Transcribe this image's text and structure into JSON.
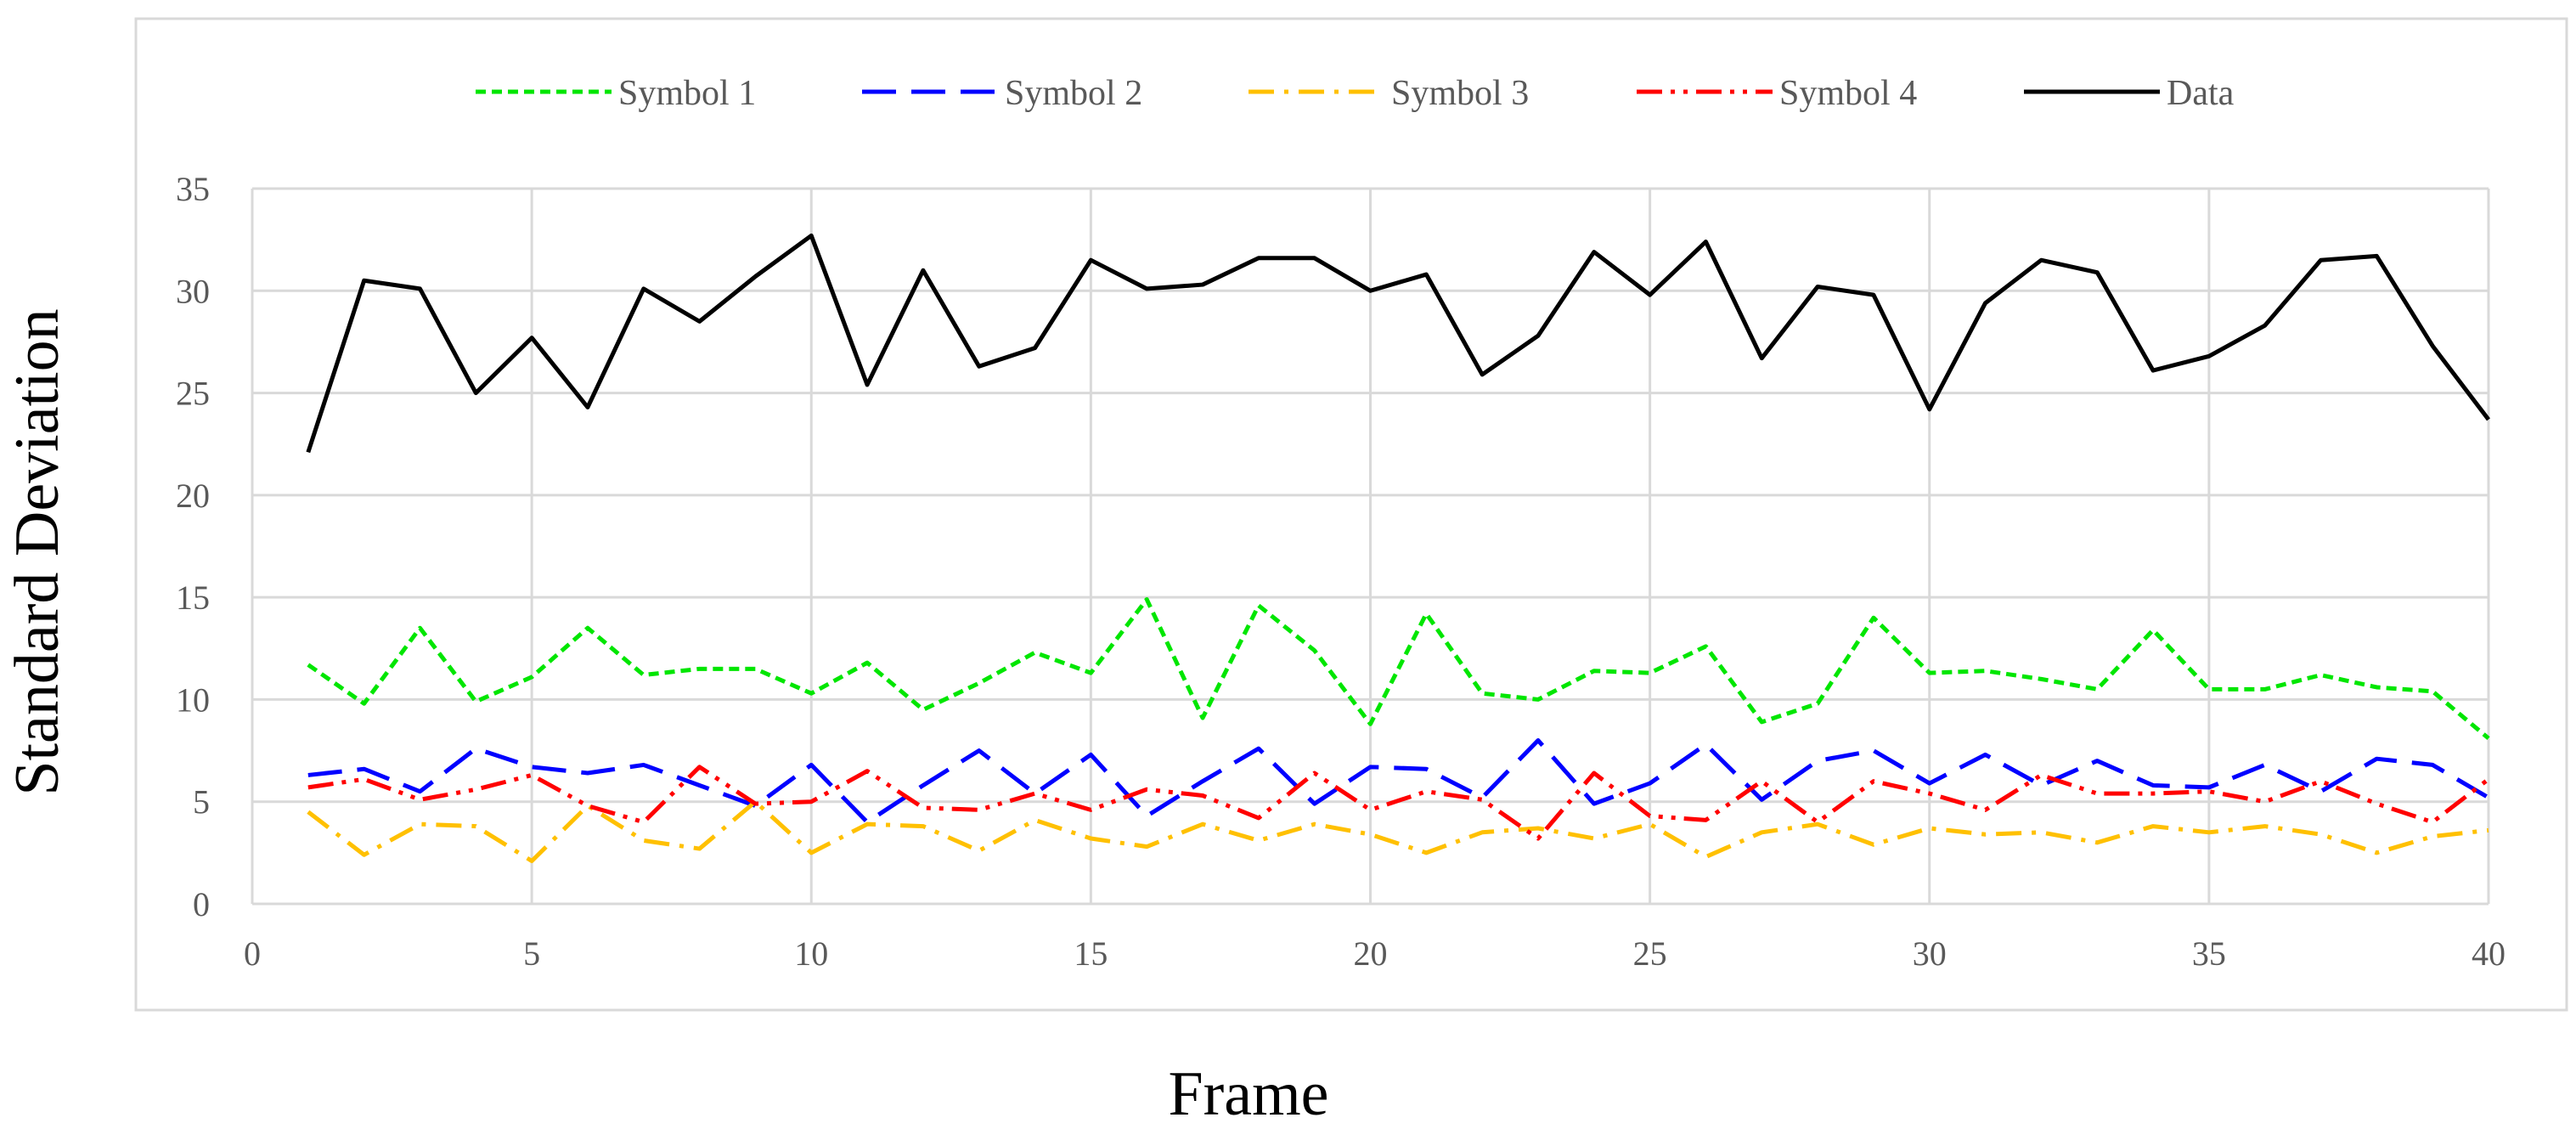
{
  "chart_data": {
    "type": "line",
    "xlabel": "Frame",
    "ylabel": "Standard Deviation",
    "xlim": [
      0,
      40
    ],
    "ylim": [
      0,
      35
    ],
    "xticks": [
      0,
      5,
      10,
      15,
      20,
      25,
      30,
      35,
      40
    ],
    "yticks": [
      0,
      5,
      10,
      15,
      20,
      25,
      30,
      35
    ],
    "grid": true,
    "legend_position": "top",
    "x": [
      1,
      2,
      3,
      4,
      5,
      6,
      7,
      8,
      9,
      10,
      11,
      12,
      13,
      14,
      15,
      16,
      17,
      18,
      19,
      20,
      21,
      22,
      23,
      24,
      25,
      26,
      27,
      28,
      29,
      30,
      31,
      32,
      33,
      34,
      35,
      36,
      37,
      38,
      39,
      40
    ],
    "series": [
      {
        "name": "Symbol 1",
        "color": "#00e600",
        "dash": "short-dash",
        "values": [
          11.7,
          9.8,
          13.5,
          9.9,
          11.1,
          13.5,
          11.2,
          11.5,
          11.5,
          10.3,
          11.8,
          9.5,
          10.8,
          12.3,
          11.3,
          14.9,
          9.1,
          14.6,
          12.4,
          8.8,
          14.2,
          10.3,
          10.0,
          11.4,
          11.3,
          12.6,
          8.9,
          9.8,
          14.0,
          11.3,
          11.4,
          11.0,
          10.5,
          13.4,
          10.5,
          10.5,
          11.2,
          10.6,
          10.4,
          8.1
        ]
      },
      {
        "name": "Symbol 2",
        "color": "#0000ff",
        "dash": "long-dash",
        "values": [
          6.3,
          6.6,
          5.5,
          7.6,
          6.7,
          6.4,
          6.8,
          5.8,
          4.8,
          6.8,
          4.0,
          5.8,
          7.5,
          5.4,
          7.3,
          4.3,
          6.0,
          7.6,
          4.9,
          6.7,
          6.6,
          5.2,
          8.0,
          4.9,
          5.9,
          7.8,
          5.1,
          7.0,
          7.5,
          5.9,
          7.3,
          5.8,
          7.0,
          5.8,
          5.7,
          6.8,
          5.5,
          7.1,
          6.8,
          5.2
        ]
      },
      {
        "name": "Symbol 3",
        "color": "#ffc000",
        "dash": "dash-dot",
        "values": [
          4.5,
          2.4,
          3.9,
          3.8,
          2.1,
          4.8,
          3.1,
          2.7,
          5.0,
          2.5,
          3.9,
          3.8,
          2.6,
          4.1,
          3.2,
          2.8,
          3.9,
          3.1,
          3.9,
          3.4,
          2.5,
          3.5,
          3.7,
          3.2,
          3.9,
          2.3,
          3.5,
          3.9,
          2.9,
          3.7,
          3.4,
          3.5,
          3.0,
          3.8,
          3.5,
          3.8,
          3.4,
          2.5,
          3.3,
          3.6
        ]
      },
      {
        "name": "Symbol 4",
        "color": "#ff0000",
        "dash": "dash-dot-dot",
        "values": [
          5.7,
          6.1,
          5.1,
          5.6,
          6.3,
          4.8,
          4.0,
          6.7,
          4.9,
          5.0,
          6.5,
          4.7,
          4.6,
          5.4,
          4.6,
          5.6,
          5.3,
          4.2,
          6.4,
          4.6,
          5.5,
          5.1,
          3.2,
          6.4,
          4.3,
          4.1,
          6.0,
          4.0,
          6.0,
          5.4,
          4.6,
          6.3,
          5.4,
          5.4,
          5.5,
          5.0,
          6.0,
          4.9,
          4.0,
          6.1
        ]
      },
      {
        "name": "Data",
        "color": "#000000",
        "dash": "solid",
        "values": [
          22.1,
          30.5,
          30.1,
          25.0,
          27.7,
          24.3,
          30.1,
          28.5,
          30.7,
          32.7,
          25.4,
          31.0,
          26.3,
          27.2,
          31.5,
          30.1,
          30.3,
          31.6,
          31.6,
          30.0,
          30.8,
          25.9,
          27.8,
          31.9,
          29.8,
          32.4,
          26.7,
          30.2,
          29.8,
          24.2,
          29.4,
          31.5,
          30.9,
          26.1,
          26.8,
          28.3,
          31.5,
          31.7,
          27.3,
          23.7
        ]
      }
    ]
  }
}
